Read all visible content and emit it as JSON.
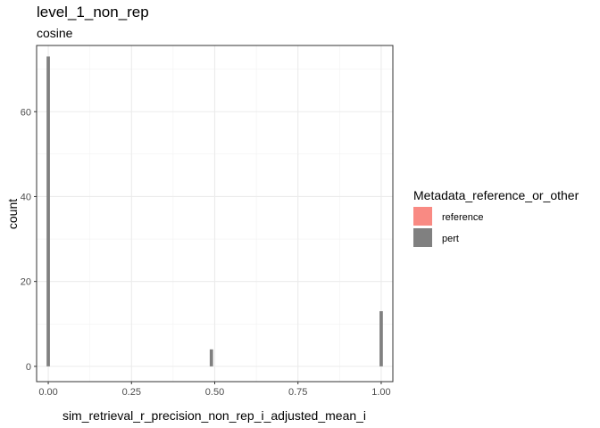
{
  "chart_data": {
    "type": "bar",
    "title": "level_1_non_rep",
    "subtitle": "cosine",
    "xlabel": "sim_retrieval_r_precision_non_rep_i_adjusted_mean_i",
    "ylabel": "count",
    "xlim": [
      -0.035,
      1.035
    ],
    "ylim": [
      -3.6,
      75.6
    ],
    "x_ticks": [
      0.0,
      0.25,
      0.5,
      0.75,
      1.0
    ],
    "x_tick_labels": [
      "0.00",
      "0.25",
      "0.50",
      "0.75",
      "1.00"
    ],
    "y_ticks": [
      0,
      20,
      40,
      60
    ],
    "y_tick_labels": [
      "0",
      "20",
      "40",
      "60"
    ],
    "bin_width": 0.01,
    "grid": true,
    "legend_position": "right",
    "legend_title": "Metadata_reference_or_other",
    "series": [
      {
        "name": "reference",
        "color": "#f8766d",
        "bars": []
      },
      {
        "name": "pert",
        "color": "#808080",
        "bars": [
          {
            "x": 0.0,
            "count": 73
          },
          {
            "x": 0.49,
            "count": 4
          },
          {
            "x": 1.0,
            "count": 13
          }
        ]
      }
    ]
  }
}
